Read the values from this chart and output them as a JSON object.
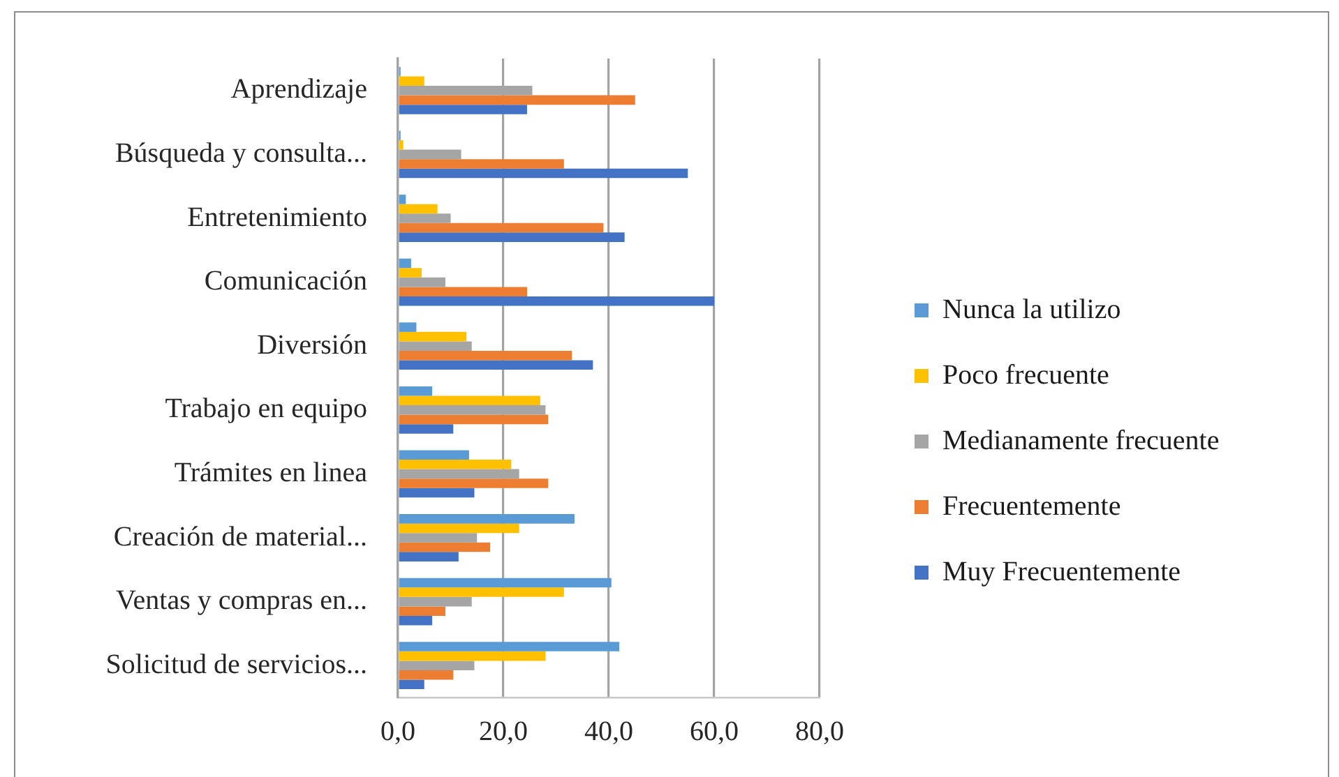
{
  "chart_data": {
    "type": "bar",
    "orientation": "horizontal",
    "categories": [
      "Aprendizaje",
      "Búsqueda y consulta...",
      "Entretenimiento",
      "Comunicación",
      "Diversión",
      "Trabajo en equipo",
      "Trámites en linea",
      "Creación de material...",
      "Ventas y compras en...",
      "Solicitud de servicios..."
    ],
    "series": [
      {
        "name": "Nunca la utilizo",
        "color": "#5b9bd5",
        "values": [
          0.5,
          0.5,
          1.5,
          2.5,
          3.5,
          6.5,
          13.5,
          33.5,
          40.5,
          42
        ]
      },
      {
        "name": "Poco frecuente",
        "color": "#ffc000",
        "values": [
          5,
          1,
          7.5,
          4.5,
          13,
          27,
          21.5,
          23,
          31.5,
          28
        ]
      },
      {
        "name": "Medianamente frecuente",
        "color": "#a5a5a5",
        "values": [
          25.5,
          12,
          10,
          9,
          14,
          28,
          23,
          15,
          14,
          14.5
        ]
      },
      {
        "name": "Frecuentemente",
        "color": "#ed7d31",
        "values": [
          45,
          31.5,
          39,
          24.5,
          33,
          28.5,
          28.5,
          17.5,
          9,
          10.5
        ]
      },
      {
        "name": "Muy Frecuentemente",
        "color": "#4472c4",
        "values": [
          24.5,
          55,
          43,
          60,
          37,
          10.5,
          14.5,
          11.5,
          6.5,
          5
        ]
      }
    ],
    "xlim": [
      0,
      80
    ],
    "xticks": [
      {
        "value": 0,
        "label": "0,0"
      },
      {
        "value": 20,
        "label": "20,0"
      },
      {
        "value": 40,
        "label": "40,0"
      },
      {
        "value": 60,
        "label": "60,0"
      },
      {
        "value": 80,
        "label": "80,0"
      }
    ],
    "grid": "x",
    "legend": "right"
  }
}
